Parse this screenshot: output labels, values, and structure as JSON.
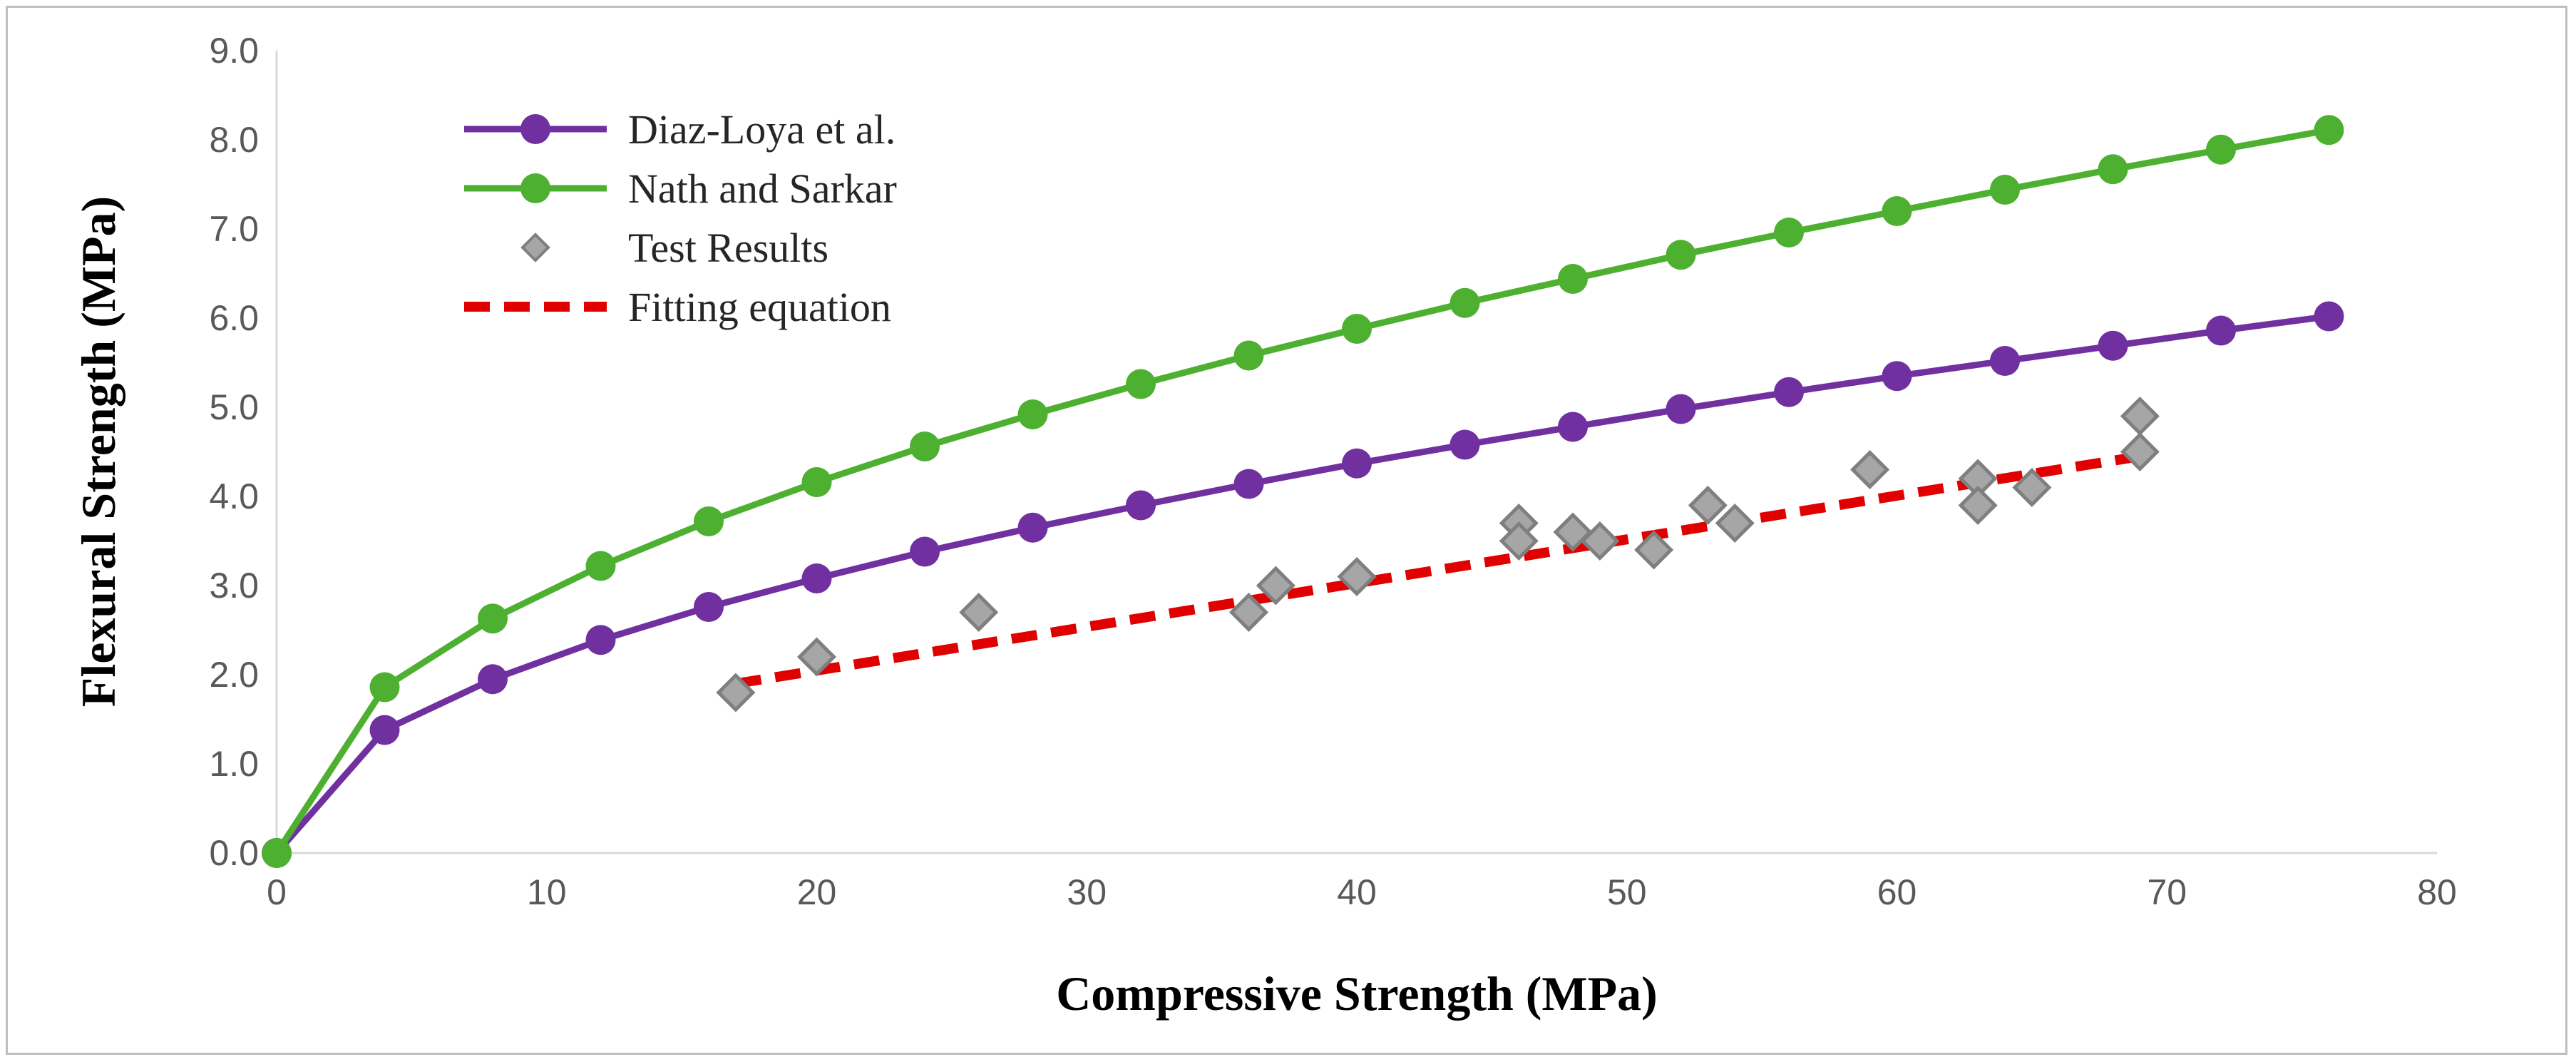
{
  "chart_data": {
    "type": "line",
    "title": "",
    "xlabel": "Compressive Strength (MPa)",
    "ylabel": "Flexural Strength (MPa)",
    "xlim": [
      0,
      80
    ],
    "ylim": [
      0,
      9
    ],
    "x_ticks": [
      "0",
      "10",
      "20",
      "30",
      "40",
      "50",
      "60",
      "70",
      "80"
    ],
    "y_ticks": [
      "0.0",
      "1.0",
      "2.0",
      "3.0",
      "4.0",
      "5.0",
      "6.0",
      "7.0",
      "8.0",
      "9.0"
    ],
    "grid": false,
    "legend_position": "top-left",
    "series": [
      {
        "name": "Diaz-Loya et al.",
        "style": "line-marker",
        "color": "#7030a0",
        "x": [
          0,
          4,
          8,
          12,
          16,
          20,
          24,
          28,
          32,
          36,
          40,
          44,
          48,
          52,
          56,
          60,
          64,
          68,
          72,
          76
        ],
        "y": [
          0,
          1.38,
          1.95,
          2.39,
          2.76,
          3.08,
          3.38,
          3.65,
          3.9,
          4.14,
          4.37,
          4.58,
          4.78,
          4.98,
          5.17,
          5.35,
          5.52,
          5.69,
          5.86,
          6.02
        ]
      },
      {
        "name": "Nath and Sarkar",
        "style": "line-marker",
        "color": "#4eb030",
        "x": [
          0,
          4,
          8,
          12,
          16,
          20,
          24,
          28,
          32,
          36,
          40,
          44,
          48,
          52,
          56,
          60,
          64,
          68,
          72,
          76
        ],
        "y": [
          0,
          1.86,
          2.63,
          3.22,
          3.72,
          4.16,
          4.56,
          4.92,
          5.26,
          5.58,
          5.88,
          6.17,
          6.44,
          6.71,
          6.96,
          7.2,
          7.44,
          7.67,
          7.89,
          8.11
        ]
      },
      {
        "name": "Test Results",
        "style": "scatter",
        "color": "#a6a6a6",
        "x": [
          17,
          20,
          26,
          36,
          37,
          40,
          46,
          46,
          48,
          49,
          51,
          53,
          54,
          59,
          63,
          63,
          65,
          69,
          69
        ],
        "y": [
          1.8,
          2.2,
          2.7,
          2.7,
          3.0,
          3.1,
          3.7,
          3.5,
          3.6,
          3.5,
          3.4,
          3.9,
          3.7,
          4.3,
          4.2,
          3.9,
          4.1,
          4.9,
          4.5
        ]
      },
      {
        "name": "Fitting equation",
        "style": "dashed-line",
        "color": "#e00000",
        "x": [
          17,
          69
        ],
        "y": [
          1.9,
          4.45
        ]
      }
    ]
  }
}
